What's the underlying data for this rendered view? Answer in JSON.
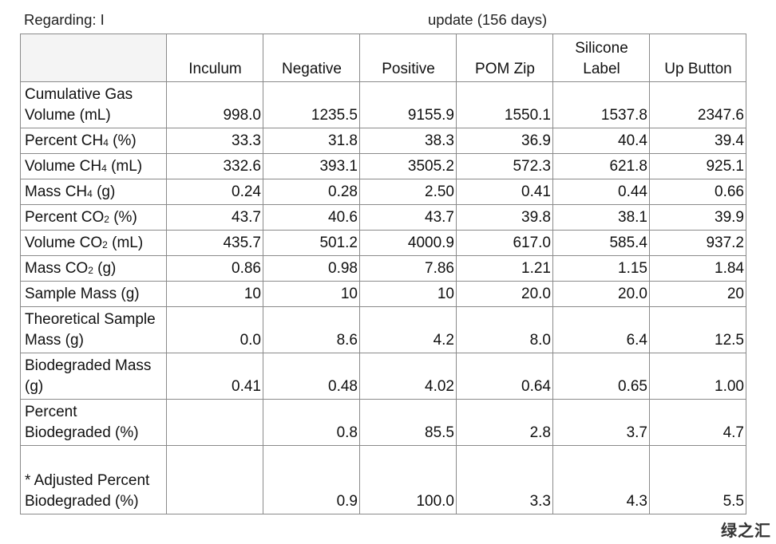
{
  "heading": {
    "prefix": "Regarding: I",
    "suffix": "update (156 days)"
  },
  "table": {
    "columns": [
      "",
      "Inculum",
      "Negative",
      "Positive",
      "POM Zip",
      "Silicone Label",
      "Up Button"
    ],
    "rows": [
      {
        "label": "Cumulative Gas Volume (mL)",
        "values": [
          "998.0",
          "1235.5",
          "9155.9",
          "1550.1",
          "1537.8",
          "2347.6"
        ]
      },
      {
        "label": "Percent CH4 (%)",
        "values": [
          "33.3",
          "31.8",
          "38.3",
          "36.9",
          "40.4",
          "39.4"
        ]
      },
      {
        "label": "Volume CH4 (mL)",
        "values": [
          "332.6",
          "393.1",
          "3505.2",
          "572.3",
          "621.8",
          "925.1"
        ]
      },
      {
        "label": "Mass CH4 (g)",
        "values": [
          "0.24",
          "0.28",
          "2.50",
          "0.41",
          "0.44",
          "0.66"
        ]
      },
      {
        "label": "Percent CO2 (%)",
        "values": [
          "43.7",
          "40.6",
          "43.7",
          "39.8",
          "38.1",
          "39.9"
        ]
      },
      {
        "label": "Volume CO2 (mL)",
        "values": [
          "435.7",
          "501.2",
          "4000.9",
          "617.0",
          "585.4",
          "937.2"
        ]
      },
      {
        "label": "Mass CO2 (g)",
        "values": [
          "0.86",
          "0.98",
          "7.86",
          "1.21",
          "1.15",
          "1.84"
        ]
      },
      {
        "label": "Sample Mass (g)",
        "values": [
          "10",
          "10",
          "10",
          "20.0",
          "20.0",
          "20"
        ]
      },
      {
        "label": "Theoretical Sample Mass (g)",
        "values": [
          "0.0",
          "8.6",
          "4.2",
          "8.0",
          "6.4",
          "12.5"
        ]
      },
      {
        "label": "Biodegraded Mass (g)",
        "values": [
          "0.41",
          "0.48",
          "4.02",
          "0.64",
          "0.65",
          "1.00"
        ]
      },
      {
        "label": "Percent Biodegraded (%)",
        "values": [
          "",
          "0.8",
          "85.5",
          "2.8",
          "3.7",
          "4.7"
        ]
      },
      {
        "label": "* Adjusted Percent Biodegraded (%)",
        "values": [
          "",
          "0.9",
          "100.0",
          "3.3",
          "4.3",
          "5.5"
        ]
      }
    ]
  },
  "watermark": "绿之汇"
}
